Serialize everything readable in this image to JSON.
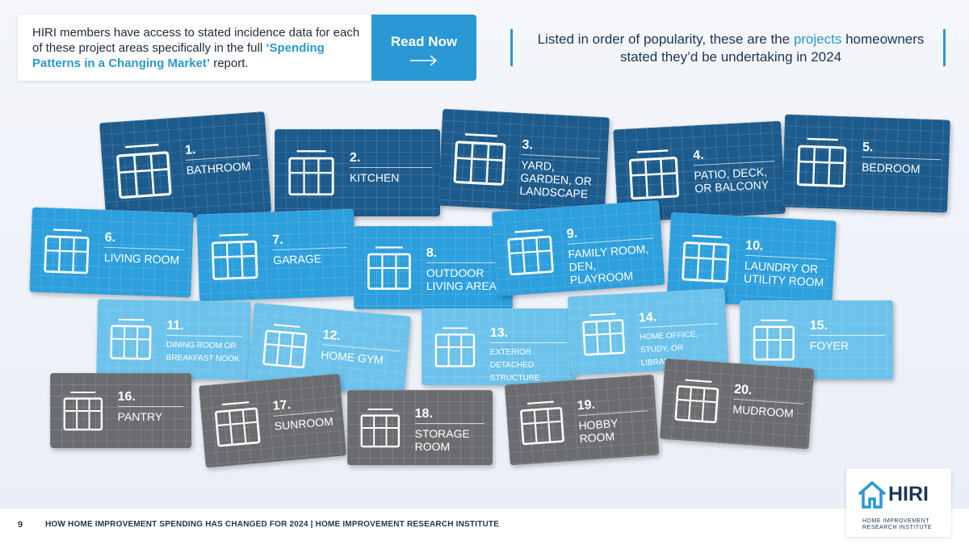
{
  "callout": {
    "text": "HIRI members have access to stated incidence data for each of these project areas specifically in the full",
    "report_title": "‘Spending Patterns in a Changing Market’",
    "text_end": "report.",
    "button": "Read Now"
  },
  "heading": {
    "before": "Listed in order of popularity, these are the",
    "highlight": "projects",
    "after": "homeowners stated they’d be undertaking in 2024"
  },
  "cards": [
    {
      "number": "1.",
      "label": "Bathroom"
    },
    {
      "number": "2.",
      "label": "Kitchen"
    },
    {
      "number": "3.",
      "label": "Yard, Garden, or Landscape"
    },
    {
      "number": "4.",
      "label": "Patio, Deck, or Balcony"
    },
    {
      "number": "5.",
      "label": "Bedroom"
    },
    {
      "number": "6.",
      "label": "Living Room"
    },
    {
      "number": "7.",
      "label": "Garage"
    },
    {
      "number": "8.",
      "label": "Outdoor Living Area"
    },
    {
      "number": "9.",
      "label": "Family Room, Den, Playroom"
    },
    {
      "number": "10.",
      "label": "Laundry or Utility Room"
    },
    {
      "number": "11.",
      "label": "Dining Room or Breakfast Nook"
    },
    {
      "number": "12.",
      "label": "Home Gym"
    },
    {
      "number": "13.",
      "label": "Exterior Detached Structure"
    },
    {
      "number": "14.",
      "label": "Home Office, Study, or Library"
    },
    {
      "number": "15.",
      "label": "Foyer"
    },
    {
      "number": "16.",
      "label": "Pantry"
    },
    {
      "number": "17.",
      "label": "Sunroom"
    },
    {
      "number": "18.",
      "label": "Storage Room"
    },
    {
      "number": "19.",
      "label": "Hobby Room"
    },
    {
      "number": "20.",
      "label": "Mudroom"
    }
  ],
  "footer": {
    "page": "9",
    "text": "HOW HOME IMPROVEMENT SPENDING HAS CHANGED FOR 2024 | HOME IMPROVEMENT RESEARCH INSTITUTE"
  },
  "logo": {
    "name": "HIRI",
    "subtitle": "HOME IMPROVEMENT RESEARCH INSTITUTE"
  }
}
